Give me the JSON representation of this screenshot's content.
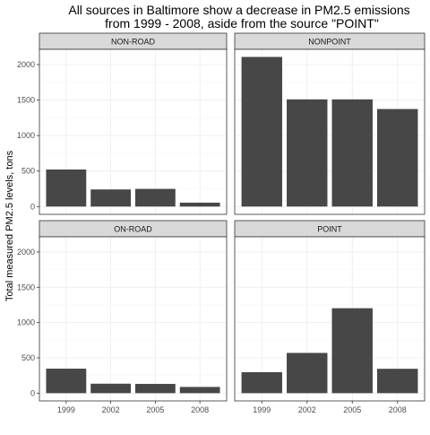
{
  "chart_data": {
    "type": "bar",
    "title": "All sources in Baltimore show a decrease in PM2.5 emissions",
    "subtitle": "from 1999 - 2008, aside from the source \"POINT\"",
    "xlabel": "",
    "ylabel": "Total measured PM2.5 levels, tons",
    "categories": [
      "1999",
      "2002",
      "2005",
      "2008"
    ],
    "ylim": [
      0,
      2200
    ],
    "yticks": [
      "0",
      "500",
      "1000",
      "1500",
      "2000"
    ],
    "bar_color": "#474747",
    "grid": true,
    "facets": [
      {
        "name": "NON-ROAD",
        "values": [
          522,
          241,
          249,
          55
        ]
      },
      {
        "name": "NONPOINT",
        "values": [
          2108,
          1510,
          1510,
          1374
        ]
      },
      {
        "name": "ON-ROAD",
        "values": [
          347,
          134,
          131,
          88
        ]
      },
      {
        "name": "POINT",
        "values": [
          297,
          570,
          1203,
          345
        ]
      }
    ]
  }
}
